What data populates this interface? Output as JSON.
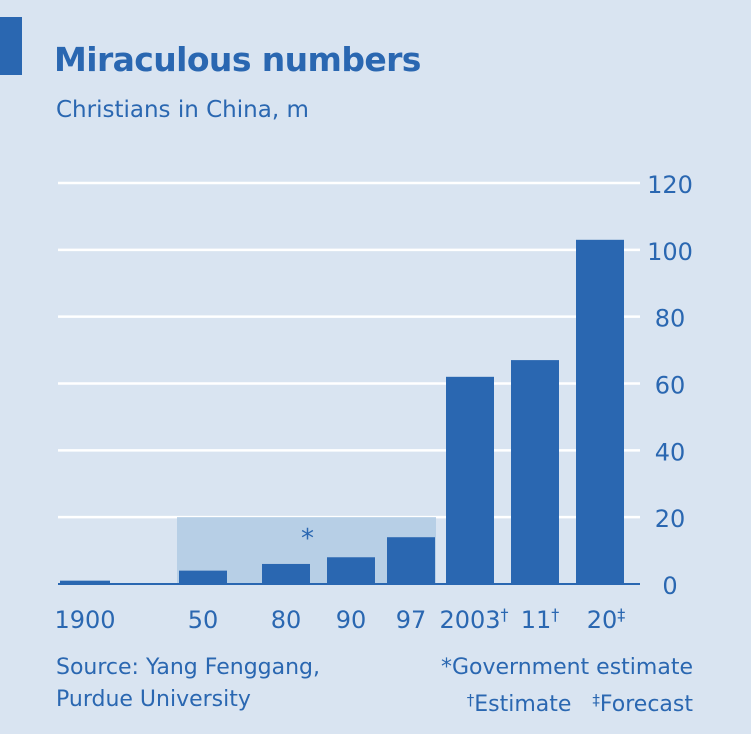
{
  "title": "Miraculous numbers",
  "subtitle": "Christians in China, m",
  "source": {
    "line1": "Source: Yang Fenggang,",
    "line2": "Purdue University"
  },
  "notes": {
    "line1": "*Government estimate",
    "dagger": "†",
    "estimate": "Estimate",
    "ddagger": "‡",
    "forecast": "Forecast"
  },
  "colors": {
    "background": "#d9e4f1",
    "bar": "#2a67b1",
    "highlight": "#b7cfe6",
    "text": "#2a67b1",
    "grid": "#ffffff"
  },
  "chart_data": {
    "type": "bar",
    "categories": [
      "1900",
      "50",
      "80",
      "90",
      "97",
      "2003†",
      "11†",
      "20‡"
    ],
    "values": [
      1,
      4,
      6,
      8,
      14,
      62,
      67,
      103
    ],
    "ylim": [
      0,
      120
    ],
    "yticks": [
      0,
      20,
      40,
      60,
      80,
      100,
      120
    ],
    "y_axis_side": "right",
    "grid": true,
    "highlight": {
      "label": "*",
      "from_category": "50",
      "to_category": "97",
      "top_value": 20,
      "meaning": "Government estimate"
    }
  }
}
